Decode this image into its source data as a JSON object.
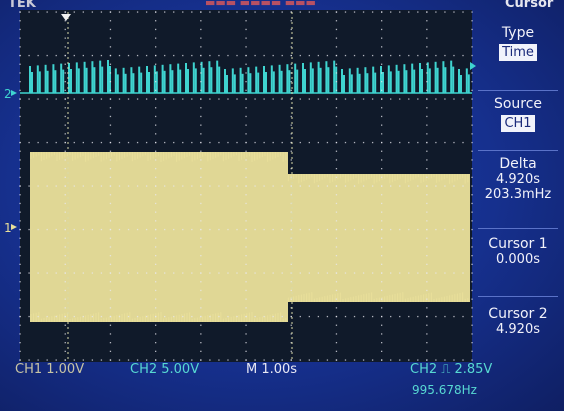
{
  "header": {
    "left": "TEK",
    "right": "Cursor"
  },
  "menu": {
    "type_title": "Type",
    "type_value": "Time",
    "source_title": "Source",
    "source_value": "CH1",
    "delta_title": "Delta",
    "delta_time": "4.920s",
    "delta_freq": "203.3mHz",
    "cursor1_title": "Cursor 1",
    "cursor1_value": "0.000s",
    "cursor2_title": "Cursor 2",
    "cursor2_value": "4.920s"
  },
  "status": {
    "ch1": "CH1  1.00V",
    "ch2": "CH2  5.00V",
    "timebase": "M 1.00s",
    "trigger": "CH2 ⎍ 2.85V",
    "frequency": "995.678Hz"
  },
  "markers": {
    "ch1": "1",
    "ch2": "2"
  },
  "colors": {
    "ch1": "#e9df9a",
    "ch2": "#3fd4d0",
    "screen": "#16308e",
    "grid": "#e8e8f0"
  }
}
